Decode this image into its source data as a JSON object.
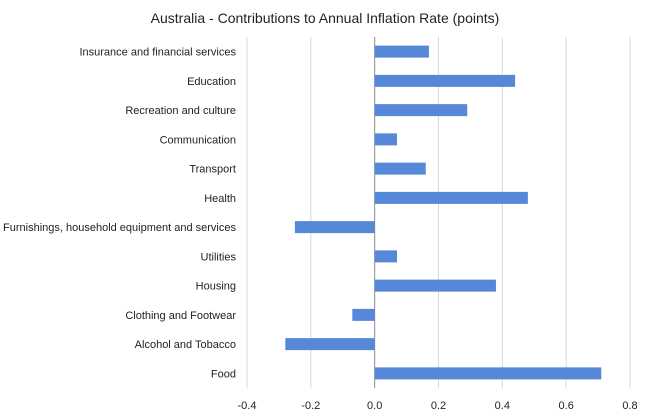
{
  "chart_data": {
    "type": "bar",
    "orientation": "horizontal",
    "title": "Australia - Contributions to Annual Inflation Rate (points)",
    "xlabel": "",
    "ylabel": "",
    "categories": [
      "Insurance and financial services",
      "Education",
      "Recreation and culture",
      "Communication",
      "Transport",
      "Health",
      "Furnishings, household equipment and services",
      "Utilities",
      "Housing",
      "Clothing and Footwear",
      "Alcohol and Tobacco",
      "Food"
    ],
    "values": [
      0.17,
      0.44,
      0.29,
      0.07,
      0.16,
      0.48,
      -0.25,
      0.07,
      0.38,
      -0.07,
      -0.28,
      0.71
    ],
    "xlim": [
      -0.4,
      0.8
    ],
    "xticks": [
      -0.4,
      -0.2,
      0.0,
      0.2,
      0.4,
      0.6,
      0.8
    ],
    "xtick_labels": [
      "-0.4",
      "-0.2",
      "0.0",
      "0.2",
      "0.4",
      "0.6",
      "0.8"
    ],
    "grid": "vertical",
    "legend": "none",
    "bar_color": "#5588d8"
  }
}
